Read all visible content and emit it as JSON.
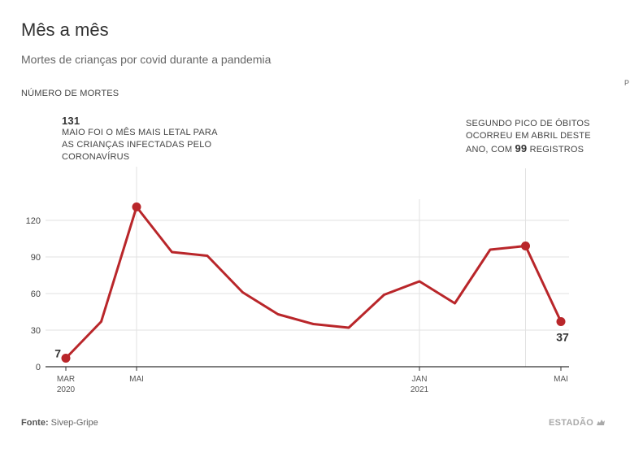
{
  "header": {
    "title": "Mês a mês",
    "subtitle": "Mortes de crianças por covid durante a pandemia",
    "ylabel": "NÚMERO DE MORTES",
    "stray_letter": "P"
  },
  "annotations": {
    "peak": {
      "value": "131",
      "text": "MAIO FOI O MÊS MAIS LETAL PARA AS CRIANÇAS INFECTADAS PELO CORONAVÍRUS"
    },
    "second": {
      "text_before": "SEGUNDO PICO DE ÓBITOS OCORREU EM ABRIL DESTE ANO, COM ",
      "value": "99",
      "text_after": " REGISTROS"
    }
  },
  "footer": {
    "source_label": "Fonte:",
    "source_text": " Sivep-Gripe",
    "brand": "ESTADÃO"
  },
  "colors": {
    "line": "#b9262a",
    "grid": "#e2e2e2",
    "axis": "#333333"
  },
  "chart_data": {
    "type": "line",
    "x": [
      "2020-03",
      "2020-04",
      "2020-05",
      "2020-06",
      "2020-07",
      "2020-08",
      "2020-09",
      "2020-10",
      "2020-11",
      "2020-12",
      "2021-01",
      "2021-02",
      "2021-03",
      "2021-04",
      "2021-05"
    ],
    "series": [
      {
        "values": [
          7,
          37,
          131,
          94,
          91,
          61,
          43,
          35,
          32,
          59,
          70,
          52,
          96,
          99,
          37
        ]
      }
    ],
    "ylim": [
      0,
      130
    ],
    "yticks": [
      0,
      30,
      60,
      90,
      120
    ],
    "xtick_labels": [
      {
        "index": 0,
        "lines": [
          "MAR",
          "2020"
        ]
      },
      {
        "index": 2,
        "lines": [
          "MAI"
        ]
      },
      {
        "index": 10,
        "lines": [
          "JAN",
          "2021"
        ]
      },
      {
        "index": 14,
        "lines": [
          "MAI"
        ]
      }
    ],
    "highlight_points": [
      0,
      2,
      13,
      14
    ],
    "data_labels": [
      {
        "index": 0,
        "text": "7"
      },
      {
        "index": 14,
        "text": "37"
      }
    ],
    "grid": true
  }
}
